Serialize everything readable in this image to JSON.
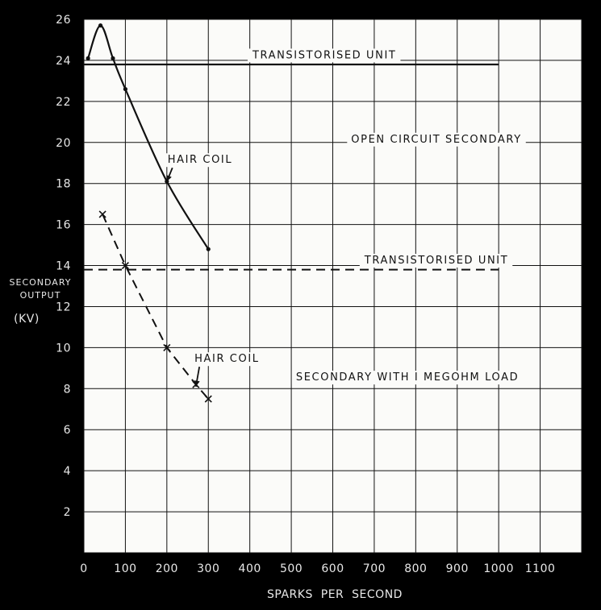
{
  "chart_data": {
    "type": "line",
    "title": "",
    "xlabel": "SPARKS  PER  SECOND",
    "ylabel": [
      "SECONDARY",
      "OUTPUT",
      "(KV)"
    ],
    "xlim": [
      0,
      1200
    ],
    "ylim": [
      0,
      26
    ],
    "x_ticks": [
      0,
      100,
      200,
      300,
      400,
      500,
      600,
      700,
      800,
      900,
      1000,
      1100
    ],
    "y_ticks": [
      2,
      4,
      6,
      8,
      10,
      12,
      14,
      16,
      18,
      20,
      22,
      24,
      26
    ],
    "grid": true,
    "series": [
      {
        "name": "",
        "style": "solid",
        "marker": "dot",
        "x": [
          10,
          40,
          70,
          100,
          200,
          300
        ],
        "y": [
          24.1,
          25.7,
          24.1,
          22.6,
          18.1,
          14.8
        ]
      },
      {
        "name": "",
        "style": "dashed",
        "marker": "x",
        "x": [
          45,
          100,
          200,
          270,
          300
        ],
        "y": [
          16.5,
          14.0,
          10.0,
          8.2,
          7.5
        ]
      },
      {
        "name": "",
        "style": "solid",
        "marker": "none",
        "x": [
          0,
          1000
        ],
        "y": [
          23.8,
          23.8
        ]
      },
      {
        "name": "",
        "style": "dashed",
        "marker": "none",
        "x": [
          0,
          1000
        ],
        "y": [
          13.8,
          13.8
        ]
      }
    ],
    "annotations": [
      {
        "text": "TRANSISTORISED UNIT",
        "x": 580,
        "y": 24.1
      },
      {
        "text": "OPEN CIRCUIT SECONDARY",
        "x": 850,
        "y": 20.0
      },
      {
        "text": "HAIR COIL",
        "x": 280,
        "y": 19.0,
        "arrow_to": [
          200,
          18.1
        ]
      },
      {
        "text": "TRANSISTORISED UNIT",
        "x": 850,
        "y": 14.1
      },
      {
        "text": "HAIR COIL",
        "x": 345,
        "y": 9.3,
        "arrow_to": [
          270,
          8.1
        ]
      },
      {
        "text": "SECONDARY WITH I MEGOHM LOAD",
        "x": 780,
        "y": 8.4
      }
    ]
  },
  "colors": {
    "background": "#000000",
    "plot_area": "#fbfbf9",
    "ink": "#111111",
    "label_ink": "#e8e8e8"
  }
}
